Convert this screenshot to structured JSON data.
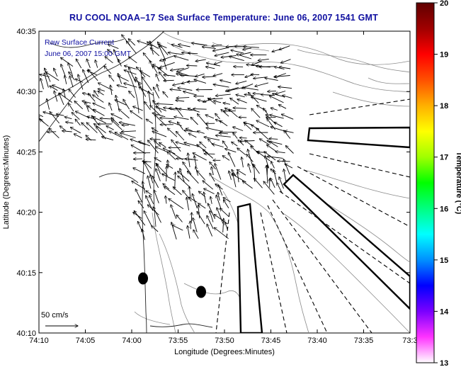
{
  "title": "RU COOL   NOAA–17  Sea Surface Temperature:  June 06, 2007 1541 GMT",
  "annotation": {
    "line1": "Raw Surface Current",
    "line2": "June 06, 2007 15:00 GMT"
  },
  "scale_label": "50 cm/s",
  "x_axis": {
    "label": "Longitude (Degrees:Minutes)",
    "ticks": [
      "74:10",
      "74:05",
      "74:00",
      "73:55",
      "73:50",
      "73:45",
      "73:40",
      "73:35",
      "73:3"
    ]
  },
  "y_axis": {
    "label": "Latitude (Degrees:Minutes)",
    "ticks": [
      "40:35",
      "40:30",
      "40:25",
      "40:20",
      "40:15",
      "40:10"
    ]
  },
  "colorbar": {
    "label": "Temperature (°C)",
    "ticks": [
      "20",
      "19",
      "18",
      "17",
      "16",
      "15",
      "14",
      "13"
    ],
    "colors": [
      "#ffffff",
      "#ff33ff",
      "#7a00ff",
      "#0000ff",
      "#0090ff",
      "#00ffff",
      "#00ff80",
      "#00ff00",
      "#a0ff00",
      "#ffff00",
      "#ffb000",
      "#ff5000",
      "#ff0000",
      "#a00000",
      "#600000"
    ]
  }
}
